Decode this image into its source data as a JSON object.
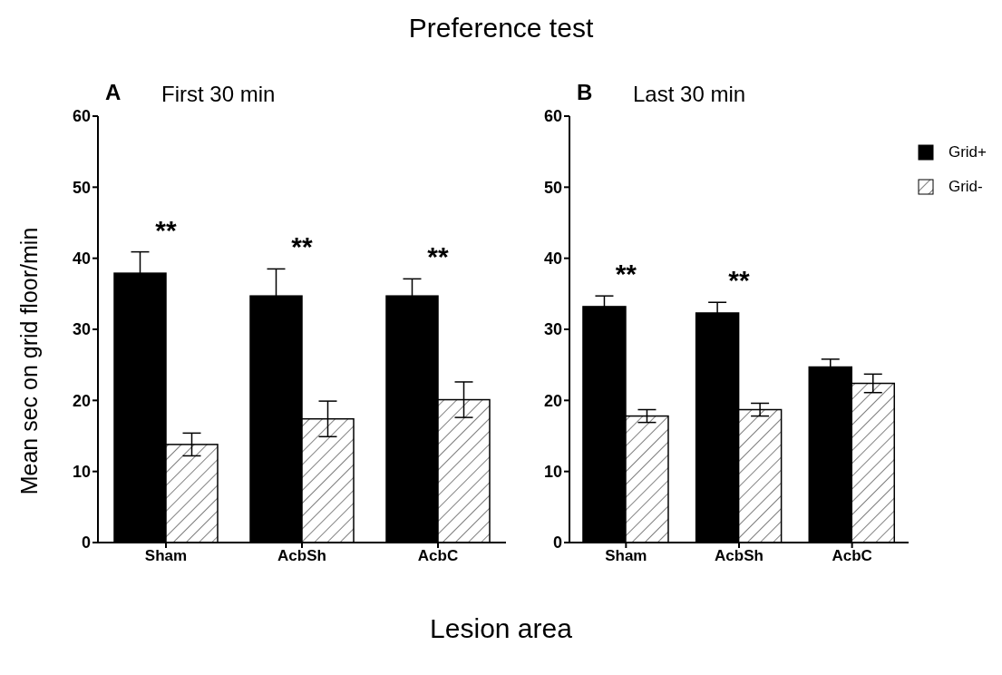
{
  "chart_data": [
    {
      "type": "bar",
      "title": "First 30 min",
      "ylabel": "Mean sec on grid floor/min",
      "categories": [
        "Sham",
        "AcbSh",
        "AcbC"
      ],
      "ylim": [
        0,
        60
      ],
      "yticks": [
        0,
        10,
        20,
        30,
        40,
        50,
        60
      ],
      "grid": false,
      "legend": false,
      "series": [
        {
          "color": "#000000",
          "values": [
            37.9,
            34.7,
            34.7
          ],
          "errors": [
            3.0,
            3.8,
            2.4
          ]
        },
        {
          "color": "#ffffff",
          "values": [
            13.8,
            17.4,
            20.1
          ],
          "errors": [
            1.6,
            2.5,
            2.5
          ]
        }
      ],
      "annotations": [
        "A",
        "Preference test",
        "Lesion area",
        "**",
        "**",
        "**"
      ]
    },
    {
      "type": "bar",
      "title": "Last 30 min",
      "categories": [
        "Sham",
        "AcbSh",
        "AcbC"
      ],
      "ylim": [
        0,
        60
      ],
      "yticks": [
        0,
        10,
        20,
        30,
        40,
        50,
        60
      ],
      "grid": false,
      "legend": "top right",
      "series": [
        {
          "name": "Grid+",
          "color": "#000000",
          "values": [
            33.2,
            32.3,
            24.7
          ],
          "errors": [
            1.5,
            1.5,
            1.1
          ]
        },
        {
          "name": "Grid-",
          "color": "#ffffff",
          "values": [
            17.8,
            18.7,
            22.4
          ],
          "errors": [
            0.9,
            0.9,
            1.3
          ]
        }
      ],
      "annotations": [
        "B",
        "**",
        "**"
      ]
    }
  ]
}
